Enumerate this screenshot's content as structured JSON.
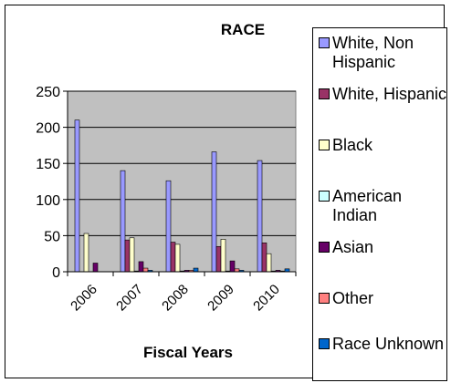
{
  "chart_data": {
    "type": "bar",
    "title": "RACE",
    "xlabel": "Fiscal Years",
    "ylabel": "",
    "categories": [
      "2006",
      "2007",
      "2008",
      "2009",
      "2010"
    ],
    "ylim": [
      0,
      250
    ],
    "yticks": [
      0,
      50,
      100,
      150,
      200,
      250
    ],
    "grid": true,
    "legend_position": "right",
    "series": [
      {
        "name": "White, Non Hispanic",
        "color": "#9999ff",
        "values": [
          210,
          140,
          126,
          166,
          154
        ]
      },
      {
        "name": "White, Hispanic",
        "color": "#993366",
        "values": [
          0,
          44,
          41,
          35,
          40
        ]
      },
      {
        "name": "Black",
        "color": "#ffffcc",
        "values": [
          53,
          47,
          38,
          45,
          25
        ]
      },
      {
        "name": "American Indian",
        "color": "#ccffff",
        "values": [
          0,
          1,
          1,
          1,
          1
        ]
      },
      {
        "name": "Asian",
        "color": "#660066",
        "values": [
          12,
          14,
          2,
          15,
          2
        ]
      },
      {
        "name": "Other",
        "color": "#ff8080",
        "values": [
          0,
          5,
          2,
          4,
          1
        ]
      },
      {
        "name": "Race Unknown",
        "color": "#0066cc",
        "values": [
          0,
          2,
          5,
          2,
          4
        ]
      }
    ]
  }
}
